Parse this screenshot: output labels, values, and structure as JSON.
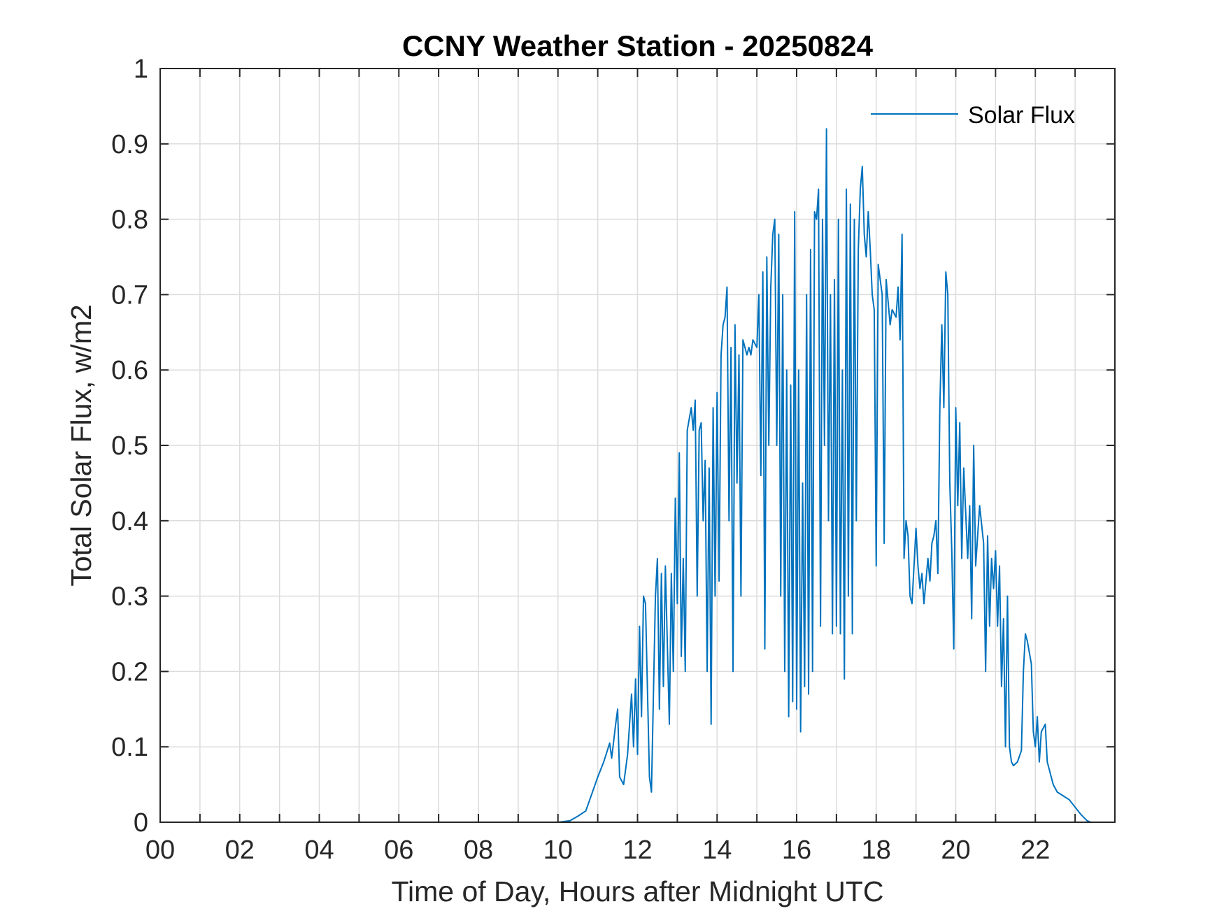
{
  "chart_data": {
    "type": "line",
    "title": "CCNY Weather Station - 20250824",
    "xlabel": "Time of Day, Hours after Midnight UTC",
    "ylabel": "Total Solar Flux, w/m2",
    "xlim": [
      0,
      24
    ],
    "ylim": [
      0,
      1
    ],
    "grid": true,
    "legend_location": "top-right",
    "x_ticks": [
      0,
      2,
      4,
      6,
      8,
      10,
      12,
      14,
      16,
      18,
      20,
      22
    ],
    "x_tick_labels": [
      "00",
      "02",
      "04",
      "06",
      "08",
      "10",
      "12",
      "14",
      "16",
      "18",
      "20",
      "22"
    ],
    "y_ticks": [
      0,
      0.1,
      0.2,
      0.3,
      0.4,
      0.5,
      0.6,
      0.7,
      0.8,
      0.9,
      1
    ],
    "y_tick_labels": [
      "0",
      "0.1",
      "0.2",
      "0.3",
      "0.4",
      "0.5",
      "0.6",
      "0.7",
      "0.8",
      "0.9",
      "1"
    ],
    "series": [
      {
        "name": "Solar Flux",
        "color": "#0072BD",
        "points": [
          [
            0,
            0
          ],
          [
            10.0,
            0
          ],
          [
            10.3,
            0.002
          ],
          [
            10.5,
            0.008
          ],
          [
            10.7,
            0.015
          ],
          [
            10.8,
            0.03
          ],
          [
            11.0,
            0.06
          ],
          [
            11.15,
            0.08
          ],
          [
            11.3,
            0.105
          ],
          [
            11.35,
            0.085
          ],
          [
            11.45,
            0.13
          ],
          [
            11.5,
            0.15
          ],
          [
            11.55,
            0.06
          ],
          [
            11.65,
            0.05
          ],
          [
            11.75,
            0.09
          ],
          [
            11.85,
            0.17
          ],
          [
            11.9,
            0.1
          ],
          [
            11.95,
            0.19
          ],
          [
            12.0,
            0.09
          ],
          [
            12.05,
            0.26
          ],
          [
            12.1,
            0.14
          ],
          [
            12.15,
            0.3
          ],
          [
            12.2,
            0.29
          ],
          [
            12.3,
            0.06
          ],
          [
            12.35,
            0.04
          ],
          [
            12.45,
            0.3
          ],
          [
            12.5,
            0.35
          ],
          [
            12.55,
            0.15
          ],
          [
            12.6,
            0.33
          ],
          [
            12.65,
            0.18
          ],
          [
            12.7,
            0.34
          ],
          [
            12.8,
            0.13
          ],
          [
            12.85,
            0.33
          ],
          [
            12.9,
            0.2
          ],
          [
            12.95,
            0.43
          ],
          [
            13.0,
            0.29
          ],
          [
            13.05,
            0.49
          ],
          [
            13.1,
            0.22
          ],
          [
            13.15,
            0.35
          ],
          [
            13.2,
            0.2
          ],
          [
            13.25,
            0.52
          ],
          [
            13.35,
            0.55
          ],
          [
            13.4,
            0.52
          ],
          [
            13.45,
            0.56
          ],
          [
            13.5,
            0.3
          ],
          [
            13.55,
            0.52
          ],
          [
            13.6,
            0.53
          ],
          [
            13.65,
            0.4
          ],
          [
            13.7,
            0.48
          ],
          [
            13.75,
            0.2
          ],
          [
            13.8,
            0.47
          ],
          [
            13.85,
            0.13
          ],
          [
            13.9,
            0.55
          ],
          [
            13.95,
            0.3
          ],
          [
            14.0,
            0.57
          ],
          [
            14.05,
            0.32
          ],
          [
            14.1,
            0.62
          ],
          [
            14.15,
            0.66
          ],
          [
            14.2,
            0.67
          ],
          [
            14.25,
            0.71
          ],
          [
            14.3,
            0.4
          ],
          [
            14.35,
            0.63
          ],
          [
            14.4,
            0.2
          ],
          [
            14.45,
            0.66
          ],
          [
            14.5,
            0.45
          ],
          [
            14.55,
            0.62
          ],
          [
            14.6,
            0.3
          ],
          [
            14.65,
            0.64
          ],
          [
            14.7,
            0.63
          ],
          [
            14.75,
            0.62
          ],
          [
            14.8,
            0.63
          ],
          [
            14.85,
            0.62
          ],
          [
            14.9,
            0.64
          ],
          [
            15.0,
            0.63
          ],
          [
            15.05,
            0.7
          ],
          [
            15.1,
            0.46
          ],
          [
            15.15,
            0.73
          ],
          [
            15.2,
            0.23
          ],
          [
            15.25,
            0.75
          ],
          [
            15.3,
            0.5
          ],
          [
            15.35,
            0.71
          ],
          [
            15.4,
            0.78
          ],
          [
            15.45,
            0.8
          ],
          [
            15.5,
            0.5
          ],
          [
            15.55,
            0.78
          ],
          [
            15.6,
            0.3
          ],
          [
            15.65,
            0.7
          ],
          [
            15.7,
            0.2
          ],
          [
            15.75,
            0.6
          ],
          [
            15.8,
            0.14
          ],
          [
            15.85,
            0.58
          ],
          [
            15.9,
            0.16
          ],
          [
            15.95,
            0.81
          ],
          [
            16.0,
            0.15
          ],
          [
            16.05,
            0.6
          ],
          [
            16.1,
            0.12
          ],
          [
            16.15,
            0.45
          ],
          [
            16.2,
            0.18
          ],
          [
            16.25,
            0.7
          ],
          [
            16.3,
            0.17
          ],
          [
            16.35,
            0.76
          ],
          [
            16.4,
            0.2
          ],
          [
            16.45,
            0.81
          ],
          [
            16.5,
            0.8
          ],
          [
            16.55,
            0.84
          ],
          [
            16.6,
            0.26
          ],
          [
            16.65,
            0.8
          ],
          [
            16.7,
            0.5
          ],
          [
            16.75,
            0.92
          ],
          [
            16.8,
            0.4
          ],
          [
            16.85,
            0.7
          ],
          [
            16.9,
            0.25
          ],
          [
            16.95,
            0.72
          ],
          [
            17.0,
            0.26
          ],
          [
            17.05,
            0.8
          ],
          [
            17.1,
            0.25
          ],
          [
            17.15,
            0.6
          ],
          [
            17.2,
            0.19
          ],
          [
            17.25,
            0.84
          ],
          [
            17.3,
            0.3
          ],
          [
            17.35,
            0.82
          ],
          [
            17.4,
            0.25
          ],
          [
            17.45,
            0.8
          ],
          [
            17.5,
            0.4
          ],
          [
            17.55,
            0.76
          ],
          [
            17.6,
            0.84
          ],
          [
            17.65,
            0.87
          ],
          [
            17.7,
            0.78
          ],
          [
            17.75,
            0.75
          ],
          [
            17.8,
            0.81
          ],
          [
            17.85,
            0.76
          ],
          [
            17.9,
            0.7
          ],
          [
            17.95,
            0.68
          ],
          [
            18.0,
            0.34
          ],
          [
            18.05,
            0.74
          ],
          [
            18.1,
            0.72
          ],
          [
            18.15,
            0.7
          ],
          [
            18.2,
            0.37
          ],
          [
            18.25,
            0.72
          ],
          [
            18.3,
            0.69
          ],
          [
            18.35,
            0.66
          ],
          [
            18.4,
            0.68
          ],
          [
            18.5,
            0.67
          ],
          [
            18.55,
            0.71
          ],
          [
            18.6,
            0.64
          ],
          [
            18.65,
            0.78
          ],
          [
            18.7,
            0.35
          ],
          [
            18.75,
            0.4
          ],
          [
            18.8,
            0.38
          ],
          [
            18.85,
            0.3
          ],
          [
            18.9,
            0.29
          ],
          [
            19.0,
            0.39
          ],
          [
            19.05,
            0.34
          ],
          [
            19.1,
            0.31
          ],
          [
            19.15,
            0.33
          ],
          [
            19.2,
            0.29
          ],
          [
            19.3,
            0.35
          ],
          [
            19.35,
            0.32
          ],
          [
            19.4,
            0.37
          ],
          [
            19.45,
            0.38
          ],
          [
            19.5,
            0.4
          ],
          [
            19.55,
            0.33
          ],
          [
            19.6,
            0.55
          ],
          [
            19.65,
            0.66
          ],
          [
            19.7,
            0.55
          ],
          [
            19.75,
            0.73
          ],
          [
            19.8,
            0.7
          ],
          [
            19.85,
            0.45
          ],
          [
            19.9,
            0.36
          ],
          [
            19.95,
            0.23
          ],
          [
            20.0,
            0.55
          ],
          [
            20.05,
            0.42
          ],
          [
            20.1,
            0.53
          ],
          [
            20.15,
            0.35
          ],
          [
            20.2,
            0.47
          ],
          [
            20.3,
            0.35
          ],
          [
            20.35,
            0.42
          ],
          [
            20.4,
            0.27
          ],
          [
            20.45,
            0.5
          ],
          [
            20.5,
            0.34
          ],
          [
            20.6,
            0.42
          ],
          [
            20.7,
            0.37
          ],
          [
            20.75,
            0.2
          ],
          [
            20.8,
            0.38
          ],
          [
            20.85,
            0.26
          ],
          [
            20.9,
            0.35
          ],
          [
            20.95,
            0.31
          ],
          [
            21.0,
            0.36
          ],
          [
            21.05,
            0.26
          ],
          [
            21.1,
            0.34
          ],
          [
            21.15,
            0.18
          ],
          [
            21.2,
            0.27
          ],
          [
            21.25,
            0.1
          ],
          [
            21.3,
            0.3
          ],
          [
            21.35,
            0.1
          ],
          [
            21.4,
            0.08
          ],
          [
            21.45,
            0.075
          ],
          [
            21.55,
            0.08
          ],
          [
            21.65,
            0.095
          ],
          [
            21.7,
            0.2
          ],
          [
            21.75,
            0.25
          ],
          [
            21.8,
            0.24
          ],
          [
            21.9,
            0.21
          ],
          [
            21.95,
            0.12
          ],
          [
            22.0,
            0.1
          ],
          [
            22.05,
            0.14
          ],
          [
            22.1,
            0.08
          ],
          [
            22.15,
            0.12
          ],
          [
            22.25,
            0.13
          ],
          [
            22.3,
            0.08
          ],
          [
            22.35,
            0.07
          ],
          [
            22.45,
            0.05
          ],
          [
            22.55,
            0.04
          ],
          [
            22.7,
            0.035
          ],
          [
            22.85,
            0.03
          ],
          [
            23.0,
            0.02
          ],
          [
            23.15,
            0.01
          ],
          [
            23.3,
            0.002
          ],
          [
            23.4,
            0
          ],
          [
            24,
            0
          ]
        ]
      }
    ]
  }
}
